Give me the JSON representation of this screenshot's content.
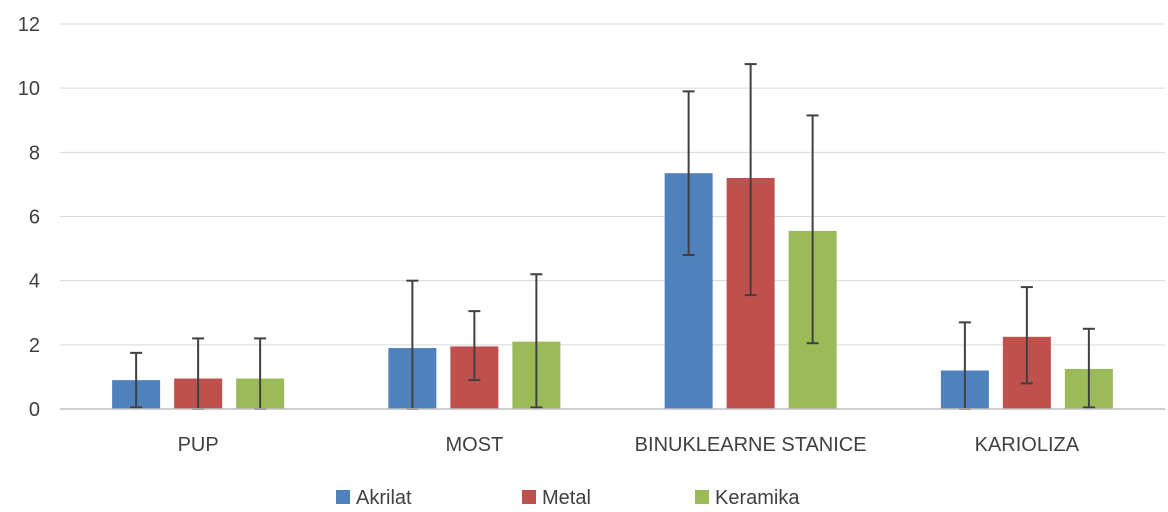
{
  "chart_data": {
    "type": "bar",
    "title": "",
    "xlabel": "",
    "ylabel": "",
    "ylim": [
      0,
      12
    ],
    "yticks": [
      0,
      2,
      4,
      6,
      8,
      10,
      12
    ],
    "grid": true,
    "legend_position": "bottom",
    "categories": [
      "PUP",
      "MOST",
      "BINUKLEARNE STANICE",
      "KARIOLIZA"
    ],
    "series": [
      {
        "name": "Akrilat",
        "color": "#4f81bd",
        "values": [
          0.9,
          1.9,
          7.35,
          1.2
        ],
        "error_low": [
          0.05,
          0.0,
          4.8,
          0.0
        ],
        "error_high": [
          1.75,
          4.0,
          9.9,
          2.7
        ]
      },
      {
        "name": "Metal",
        "color": "#c0504d",
        "values": [
          0.95,
          1.95,
          7.2,
          2.25
        ],
        "error_low": [
          0.0,
          0.9,
          3.55,
          0.8
        ],
        "error_high": [
          2.2,
          3.05,
          10.75,
          3.8
        ]
      },
      {
        "name": "Keramika",
        "color": "#9bbb59",
        "values": [
          0.95,
          2.1,
          5.55,
          1.25
        ],
        "error_low": [
          0.0,
          0.05,
          2.05,
          0.05
        ],
        "error_high": [
          2.2,
          4.2,
          9.15,
          2.5
        ]
      }
    ]
  }
}
